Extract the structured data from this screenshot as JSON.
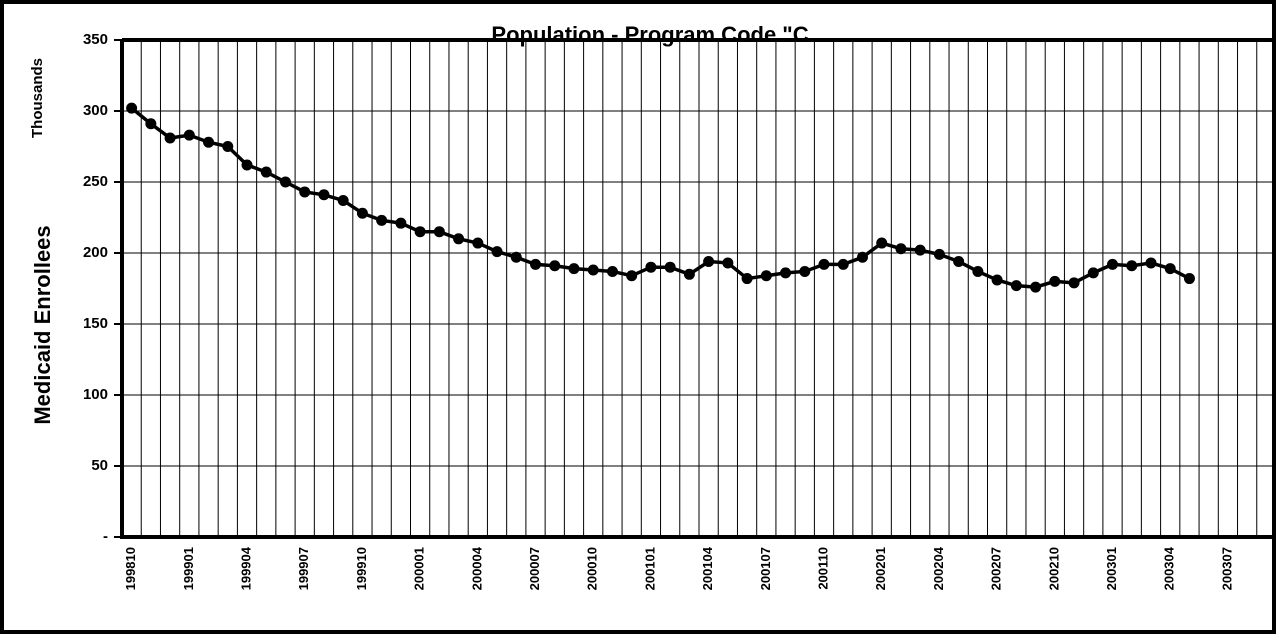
{
  "chart_data": {
    "type": "line",
    "title": "Population - Program Code \"C",
    "y_label": "Medicaid Enrollees",
    "y_units": "Thousands",
    "categories": [
      "199810",
      null,
      null,
      "199901",
      null,
      null,
      "199904",
      null,
      null,
      "199907",
      null,
      null,
      "199910",
      null,
      null,
      "200001",
      null,
      null,
      "200004",
      null,
      null,
      "200007",
      null,
      null,
      "200010",
      null,
      null,
      "200101",
      null,
      null,
      "200104",
      null,
      null,
      "200107",
      null,
      null,
      "200110",
      null,
      null,
      "200201",
      null,
      null,
      "200204",
      null,
      null,
      "200207",
      null,
      null,
      "200210",
      null,
      null,
      "200301",
      null,
      null,
      "200304",
      null,
      null,
      "200307",
      null,
      null
    ],
    "series": [
      {
        "name": "Medicaid Enrollees",
        "color": "#000000",
        "values": [
          302,
          291,
          281,
          283,
          278,
          275,
          262,
          257,
          250,
          243,
          241,
          237,
          228,
          223,
          221,
          215,
          215,
          210,
          207,
          201,
          197,
          192,
          191,
          189,
          188,
          187,
          184,
          190,
          190,
          185,
          194,
          193,
          182,
          184,
          186,
          187,
          192,
          192,
          197,
          207,
          203,
          202,
          199,
          194,
          187,
          181,
          177,
          176,
          180,
          179,
          186,
          192,
          191,
          193,
          189,
          182,
          null,
          null,
          null,
          null
        ]
      }
    ],
    "ylim": [
      0,
      350
    ],
    "yticks": [
      {
        "value": 0,
        "label": "-"
      },
      50,
      100,
      150,
      200,
      250,
      300,
      350
    ],
    "grid": true
  }
}
